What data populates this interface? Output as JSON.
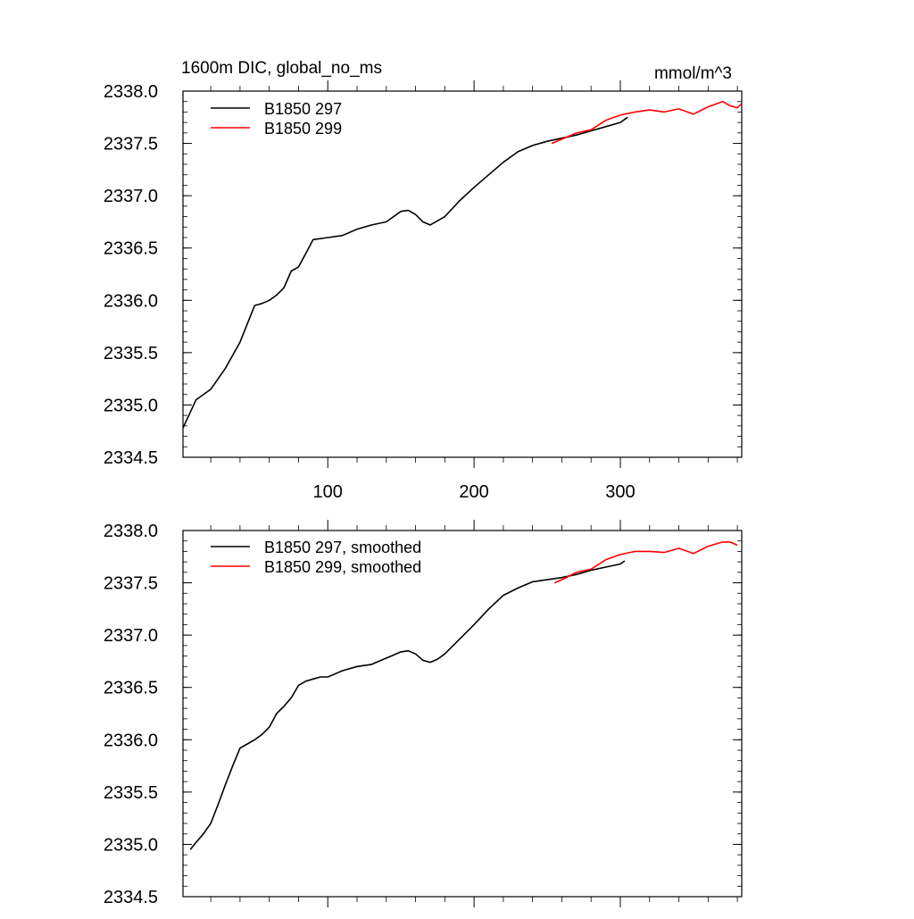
{
  "chart_data": [
    {
      "type": "line",
      "title": "1600m DIC, global_no_ms",
      "units": "mmol/m^3",
      "xlabel": "",
      "ylabel": "",
      "xlim": [
        1,
        383
      ],
      "ylim": [
        2334.5,
        2338.0
      ],
      "xticks": [
        "100",
        "200",
        "300"
      ],
      "xtick_values": [
        100,
        200,
        300
      ],
      "yticks": [
        "2334.5",
        "2335.0",
        "2335.5",
        "2336.0",
        "2336.5",
        "2337.0",
        "2337.5",
        "2338.0"
      ],
      "ytick_values": [
        2334.5,
        2335.0,
        2335.5,
        2336.0,
        2336.5,
        2337.0,
        2337.5,
        2338.0
      ],
      "legend_position": "top-left",
      "series": [
        {
          "name": "B1850 297",
          "color": "#000000",
          "x": [
            1,
            10,
            20,
            30,
            40,
            50,
            55,
            60,
            65,
            70,
            75,
            80,
            85,
            90,
            100,
            110,
            120,
            130,
            140,
            150,
            155,
            160,
            165,
            170,
            175,
            180,
            190,
            200,
            210,
            220,
            230,
            240,
            250,
            260,
            270,
            280,
            290,
            300,
            305
          ],
          "y": [
            2334.78,
            2335.05,
            2335.15,
            2335.35,
            2335.6,
            2335.95,
            2335.97,
            2336.0,
            2336.05,
            2336.12,
            2336.28,
            2336.32,
            2336.45,
            2336.58,
            2336.6,
            2336.62,
            2336.68,
            2336.72,
            2336.75,
            2336.85,
            2336.86,
            2336.82,
            2336.75,
            2336.72,
            2336.76,
            2336.8,
            2336.95,
            2337.08,
            2337.2,
            2337.32,
            2337.42,
            2337.48,
            2337.52,
            2337.55,
            2337.58,
            2337.62,
            2337.66,
            2337.7,
            2337.75
          ]
        },
        {
          "name": "B1850 299",
          "color": "#ff0000",
          "x": [
            253,
            260,
            270,
            280,
            290,
            300,
            310,
            320,
            330,
            340,
            350,
            360,
            370,
            375,
            380,
            383
          ],
          "y": [
            2337.5,
            2337.54,
            2337.6,
            2337.63,
            2337.72,
            2337.77,
            2337.8,
            2337.82,
            2337.8,
            2337.83,
            2337.78,
            2337.85,
            2337.9,
            2337.86,
            2337.84,
            2337.88
          ]
        }
      ]
    },
    {
      "type": "line",
      "title": "",
      "xlabel": "",
      "ylabel": "",
      "xlim": [
        1,
        383
      ],
      "ylim": [
        2334.5,
        2338.0
      ],
      "yticks": [
        "2334.5",
        "2335.0",
        "2335.5",
        "2336.0",
        "2336.5",
        "2337.0",
        "2337.5",
        "2338.0"
      ],
      "ytick_values": [
        2334.5,
        2335.0,
        2335.5,
        2336.0,
        2336.5,
        2337.0,
        2337.5,
        2338.0
      ],
      "xtick_values": [
        100,
        200,
        300
      ],
      "legend_position": "top-left",
      "series": [
        {
          "name": "B1850 297, smoothed",
          "color": "#000000",
          "x": [
            6,
            10,
            15,
            20,
            25,
            30,
            35,
            40,
            45,
            50,
            55,
            60,
            65,
            70,
            75,
            80,
            85,
            90,
            95,
            100,
            110,
            120,
            130,
            140,
            150,
            155,
            160,
            165,
            170,
            175,
            180,
            190,
            200,
            210,
            220,
            230,
            240,
            250,
            260,
            270,
            280,
            290,
            300,
            303
          ],
          "y": [
            2334.95,
            2335.02,
            2335.1,
            2335.2,
            2335.38,
            2335.57,
            2335.75,
            2335.92,
            2335.96,
            2336.0,
            2336.05,
            2336.12,
            2336.25,
            2336.32,
            2336.4,
            2336.52,
            2336.56,
            2336.58,
            2336.6,
            2336.6,
            2336.66,
            2336.7,
            2336.72,
            2336.78,
            2336.84,
            2336.85,
            2336.82,
            2336.76,
            2336.74,
            2336.77,
            2336.82,
            2336.96,
            2337.1,
            2337.25,
            2337.38,
            2337.45,
            2337.51,
            2337.53,
            2337.55,
            2337.58,
            2337.62,
            2337.65,
            2337.68,
            2337.71
          ]
        },
        {
          "name": "B1850 299, smoothed",
          "color": "#ff0000",
          "x": [
            255,
            260,
            270,
            280,
            290,
            300,
            310,
            320,
            330,
            340,
            350,
            360,
            370,
            375,
            380
          ],
          "y": [
            2337.5,
            2337.53,
            2337.6,
            2337.63,
            2337.72,
            2337.77,
            2337.8,
            2337.8,
            2337.79,
            2337.83,
            2337.78,
            2337.85,
            2337.89,
            2337.89,
            2337.86
          ]
        }
      ]
    }
  ]
}
